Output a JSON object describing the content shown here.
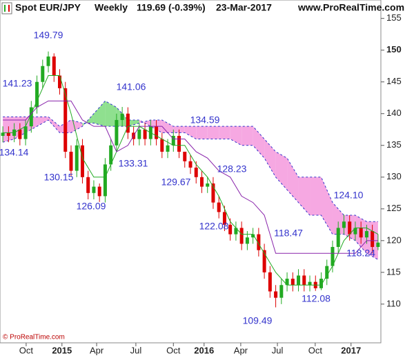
{
  "chart_data": {
    "type": "candlestick",
    "title": "Spot EUR/JPY",
    "period": "Weekly",
    "last": "119.69 (-0.39%)",
    "date": "23-Mar-2017",
    "source": "www.ProRealTime.com",
    "copyright": "© ProRealTime.com",
    "up_color": "#22aa22",
    "down_color": "#dd0000",
    "xlim": [
      0,
      134
    ],
    "ylim": [
      103.9,
      157.9
    ],
    "yticks": [
      110,
      115,
      120,
      125,
      130,
      135,
      140,
      145,
      150,
      155
    ],
    "xticks": [
      {
        "value": 9.2,
        "label": "Oct"
      },
      {
        "value": 21.8,
        "label": "2015"
      },
      {
        "value": 34,
        "label": "Apr"
      },
      {
        "value": 47.8,
        "label": "Jul"
      },
      {
        "value": 61,
        "label": "Oct"
      },
      {
        "value": 71.8,
        "label": "2016"
      },
      {
        "value": 84.7,
        "label": "Apr"
      },
      {
        "value": 97.6,
        "label": "Jul"
      },
      {
        "value": 110.9,
        "label": "Oct"
      },
      {
        "value": 123.5,
        "label": "2017"
      }
    ],
    "x": [
      1,
      3,
      5,
      7,
      9,
      11,
      13,
      15,
      17,
      19,
      21,
      23,
      25,
      27,
      29,
      31,
      33,
      35,
      37,
      39,
      41,
      43,
      45,
      47,
      49,
      51,
      53,
      55,
      57,
      59,
      61,
      63,
      65,
      67,
      69,
      71,
      73,
      75,
      77,
      79,
      81,
      83,
      85,
      87,
      89,
      91,
      93,
      95,
      97,
      99,
      101,
      103,
      105,
      107,
      109,
      111,
      113,
      115,
      117,
      119,
      121,
      123,
      125,
      127,
      129,
      131,
      133
    ],
    "open": [
      136.5,
      137,
      136.5,
      137.5,
      136,
      138,
      141,
      145,
      147.5,
      149,
      146,
      144,
      134,
      131,
      135,
      130,
      127.5,
      128.5,
      127,
      132,
      135,
      139,
      140,
      137,
      136,
      137.5,
      136,
      138,
      136,
      134,
      135,
      136.5,
      134,
      132.5,
      131.5,
      130,
      128.5,
      129,
      126,
      124.5,
      122.5,
      121,
      122,
      119.5,
      120.5,
      121,
      118.5,
      115,
      112,
      111,
      113,
      114,
      113,
      114.5,
      113,
      113.5,
      112.5,
      114,
      116,
      119,
      122,
      123,
      121,
      122,
      120.5,
      121.5,
      119
    ],
    "high": [
      138,
      138,
      138.5,
      138.5,
      139,
      142,
      146,
      148.5,
      149.79,
      149.5,
      147,
      145,
      135,
      136,
      136,
      131,
      129.5,
      129,
      133,
      136,
      140,
      141.06,
      141,
      138,
      138.5,
      138.5,
      139,
      139,
      137,
      136,
      137.5,
      137.5,
      134,
      133.5,
      132.5,
      131,
      130,
      130,
      127,
      125.5,
      123.5,
      123,
      123,
      121.5,
      122,
      122,
      119.5,
      116,
      113,
      114,
      115,
      115,
      115.5,
      115.5,
      114.5,
      114.5,
      115,
      117,
      120,
      123,
      124.1,
      124,
      123,
      123,
      122.5,
      122.5,
      121
    ],
    "low": [
      135.5,
      135.5,
      135.5,
      135,
      135,
      137,
      140,
      144,
      146.5,
      145,
      143,
      133,
      130.15,
      130,
      129,
      126.5,
      126.5,
      126.09,
      126,
      131,
      134,
      138,
      136,
      135,
      135,
      135,
      135,
      135,
      133,
      133,
      134,
      133,
      131.5,
      130.5,
      129,
      127.5,
      127.5,
      125,
      123.5,
      121.5,
      120,
      120,
      118.5,
      118.5,
      119.5,
      117.5,
      114,
      111,
      109.49,
      110,
      112,
      112,
      112,
      112,
      112,
      112.08,
      112.2,
      113,
      115,
      118,
      121,
      120,
      120,
      119.5,
      119.5,
      118,
      118.5
    ],
    "close": [
      137,
      136.5,
      137.5,
      136,
      138,
      141,
      145,
      147.5,
      149,
      146,
      144,
      134,
      131,
      135,
      130,
      127.5,
      128.5,
      127,
      132,
      135,
      139,
      140,
      137,
      136,
      137.5,
      136,
      138,
      136,
      134,
      135,
      136.5,
      134,
      132.5,
      131.5,
      130,
      128.5,
      129,
      126,
      124.5,
      122.5,
      121,
      122,
      119.5,
      120.5,
      121,
      118.5,
      115,
      112,
      111,
      113,
      114,
      113,
      114.5,
      113,
      113.5,
      112.5,
      114,
      116,
      119,
      122,
      123,
      121,
      122,
      120.5,
      121.5,
      119,
      119.69
    ],
    "line_x": [
      1,
      5,
      9,
      13,
      17,
      21,
      25,
      29,
      33,
      37,
      41,
      45,
      49,
      53,
      57,
      61,
      65,
      69,
      73,
      77,
      81,
      85,
      89,
      93,
      97,
      101,
      105,
      109,
      113,
      117,
      121,
      125,
      129,
      133
    ],
    "lines": [
      {
        "color": "#22aa22",
        "values": [
          137,
          137,
          138,
          142,
          146,
          146,
          140,
          133,
          130,
          130,
          134,
          138,
          138,
          137,
          136,
          135,
          135,
          132,
          130,
          127,
          123,
          121,
          121,
          118,
          115,
          113,
          113,
          113,
          113,
          116,
          120,
          122,
          122,
          121
        ]
      },
      {
        "color": "#8822aa",
        "values": [
          139,
          139,
          139,
          141,
          142,
          142,
          142,
          139,
          138,
          138,
          134,
          135,
          138,
          138,
          138,
          136,
          136,
          134,
          133,
          131,
          130,
          127,
          126,
          124,
          118,
          118,
          118,
          118,
          118,
          118,
          118,
          118,
          120,
          120
        ]
      }
    ],
    "cloud": {
      "line_color": "#3333cc",
      "bull_color": "#8fe08f",
      "bear_color": "#f6a8e2",
      "span_a": [
        135.5,
        136,
        137,
        138,
        139,
        137,
        137,
        138,
        140,
        142,
        141,
        139,
        139,
        138,
        137,
        137,
        137,
        136,
        136,
        136,
        136,
        135,
        135,
        133,
        130,
        128,
        126,
        124,
        124,
        121,
        121,
        120,
        118,
        117
      ],
      "span_b": [
        139.5,
        139.5,
        139.5,
        139.5,
        139.5,
        138,
        139,
        138.5,
        138.5,
        138,
        138,
        138,
        138.5,
        139,
        139,
        138,
        138,
        138,
        138,
        138,
        138,
        138,
        138,
        136,
        134,
        133,
        130,
        130,
        130,
        126,
        124,
        124,
        123,
        123
      ]
    },
    "annotation_color": "#3333cc",
    "annotations": [
      149.79,
      141.23,
      134.14,
      130.15,
      126.09,
      141.06,
      133.31,
      129.67,
      134.59,
      128.23,
      122.08,
      118.47,
      109.49,
      112.08,
      {
        "value": 124.1,
        "label": "124.10"
      },
      118.24
    ]
  }
}
